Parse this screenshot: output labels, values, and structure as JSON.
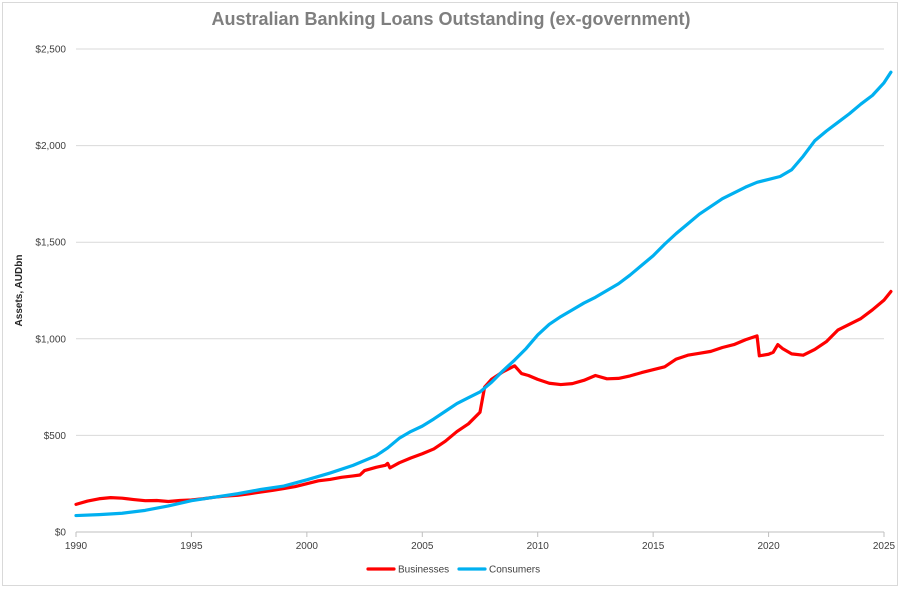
{
  "chart_data": {
    "type": "line",
    "title": "Australian Banking Loans Outstanding (ex-government)",
    "xlabel": "",
    "ylabel": "Assets, AUDbn",
    "xlim": [
      1990,
      2025
    ],
    "ylim": [
      0,
      2500
    ],
    "x_ticks": [
      "1990",
      "1995",
      "2000",
      "2005",
      "2010",
      "2015",
      "2020",
      "2025"
    ],
    "y_ticks": [
      "$0",
      "$500",
      "$1,000",
      "$1,500",
      "$2,000",
      "$2,500"
    ],
    "grid": "horizontal",
    "legend_position": "bottom",
    "series": [
      {
        "name": "Businesses",
        "color": "#ff0000",
        "points": [
          [
            1990.0,
            143
          ],
          [
            1990.5,
            160
          ],
          [
            1991.0,
            172
          ],
          [
            1991.5,
            178
          ],
          [
            1992.0,
            175
          ],
          [
            1992.5,
            168
          ],
          [
            1993.0,
            162
          ],
          [
            1993.5,
            163
          ],
          [
            1994.0,
            158
          ],
          [
            1994.5,
            163
          ],
          [
            1995.0,
            166
          ],
          [
            1995.5,
            172
          ],
          [
            1996.0,
            180
          ],
          [
            1996.5,
            186
          ],
          [
            1997.0,
            190
          ],
          [
            1997.5,
            198
          ],
          [
            1998.0,
            207
          ],
          [
            1998.5,
            215
          ],
          [
            1999.0,
            225
          ],
          [
            1999.5,
            235
          ],
          [
            2000.0,
            250
          ],
          [
            2000.5,
            265
          ],
          [
            2001.0,
            272
          ],
          [
            2001.5,
            283
          ],
          [
            2002.0,
            290
          ],
          [
            2002.3,
            295
          ],
          [
            2002.5,
            318
          ],
          [
            2003.0,
            335
          ],
          [
            2003.4,
            345
          ],
          [
            2003.5,
            355
          ],
          [
            2003.6,
            332
          ],
          [
            2004.0,
            358
          ],
          [
            2004.5,
            383
          ],
          [
            2005.0,
            405
          ],
          [
            2005.5,
            430
          ],
          [
            2006.0,
            470
          ],
          [
            2006.5,
            520
          ],
          [
            2007.0,
            560
          ],
          [
            2007.5,
            620
          ],
          [
            2007.7,
            750
          ],
          [
            2008.0,
            790
          ],
          [
            2008.5,
            830
          ],
          [
            2009.0,
            860
          ],
          [
            2009.3,
            820
          ],
          [
            2009.6,
            810
          ],
          [
            2010.0,
            790
          ],
          [
            2010.5,
            770
          ],
          [
            2011.0,
            763
          ],
          [
            2011.5,
            768
          ],
          [
            2012.0,
            785
          ],
          [
            2012.5,
            810
          ],
          [
            2013.0,
            793
          ],
          [
            2013.5,
            795
          ],
          [
            2014.0,
            808
          ],
          [
            2014.5,
            825
          ],
          [
            2015.0,
            840
          ],
          [
            2015.5,
            855
          ],
          [
            2016.0,
            895
          ],
          [
            2016.5,
            915
          ],
          [
            2017.0,
            925
          ],
          [
            2017.5,
            935
          ],
          [
            2018.0,
            955
          ],
          [
            2018.5,
            970
          ],
          [
            2019.0,
            995
          ],
          [
            2019.5,
            1015
          ],
          [
            2019.6,
            912
          ],
          [
            2020.0,
            920
          ],
          [
            2020.2,
            930
          ],
          [
            2020.4,
            970
          ],
          [
            2020.6,
            950
          ],
          [
            2021.0,
            922
          ],
          [
            2021.5,
            915
          ],
          [
            2022.0,
            945
          ],
          [
            2022.5,
            985
          ],
          [
            2023.0,
            1045
          ],
          [
            2023.5,
            1075
          ],
          [
            2024.0,
            1105
          ],
          [
            2024.5,
            1150
          ],
          [
            2025.0,
            1200
          ],
          [
            2025.3,
            1245
          ]
        ]
      },
      {
        "name": "Consumers",
        "color": "#00b0f0",
        "points": [
          [
            1990.0,
            85
          ],
          [
            1991.0,
            90
          ],
          [
            1992.0,
            97
          ],
          [
            1993.0,
            112
          ],
          [
            1994.0,
            135
          ],
          [
            1995.0,
            162
          ],
          [
            1996.0,
            180
          ],
          [
            1997.0,
            198
          ],
          [
            1998.0,
            220
          ],
          [
            1999.0,
            238
          ],
          [
            2000.0,
            270
          ],
          [
            2001.0,
            305
          ],
          [
            2002.0,
            345
          ],
          [
            2003.0,
            395
          ],
          [
            2003.5,
            435
          ],
          [
            2004.0,
            485
          ],
          [
            2004.5,
            520
          ],
          [
            2005.0,
            548
          ],
          [
            2005.5,
            585
          ],
          [
            2006.0,
            625
          ],
          [
            2006.5,
            665
          ],
          [
            2007.0,
            695
          ],
          [
            2007.5,
            725
          ],
          [
            2008.0,
            775
          ],
          [
            2008.5,
            835
          ],
          [
            2009.0,
            890
          ],
          [
            2009.5,
            950
          ],
          [
            2010.0,
            1020
          ],
          [
            2010.5,
            1075
          ],
          [
            2011.0,
            1115
          ],
          [
            2011.5,
            1150
          ],
          [
            2012.0,
            1185
          ],
          [
            2012.5,
            1215
          ],
          [
            2013.0,
            1250
          ],
          [
            2013.5,
            1285
          ],
          [
            2014.0,
            1330
          ],
          [
            2014.5,
            1380
          ],
          [
            2015.0,
            1430
          ],
          [
            2015.5,
            1490
          ],
          [
            2016.0,
            1545
          ],
          [
            2016.5,
            1595
          ],
          [
            2017.0,
            1645
          ],
          [
            2017.5,
            1685
          ],
          [
            2018.0,
            1725
          ],
          [
            2018.5,
            1755
          ],
          [
            2019.0,
            1785
          ],
          [
            2019.5,
            1810
          ],
          [
            2020.0,
            1825
          ],
          [
            2020.5,
            1840
          ],
          [
            2021.0,
            1875
          ],
          [
            2021.5,
            1945
          ],
          [
            2022.0,
            2025
          ],
          [
            2022.5,
            2075
          ],
          [
            2023.0,
            2120
          ],
          [
            2023.5,
            2165
          ],
          [
            2024.0,
            2215
          ],
          [
            2024.5,
            2260
          ],
          [
            2025.0,
            2325
          ],
          [
            2025.3,
            2380
          ]
        ]
      }
    ]
  }
}
